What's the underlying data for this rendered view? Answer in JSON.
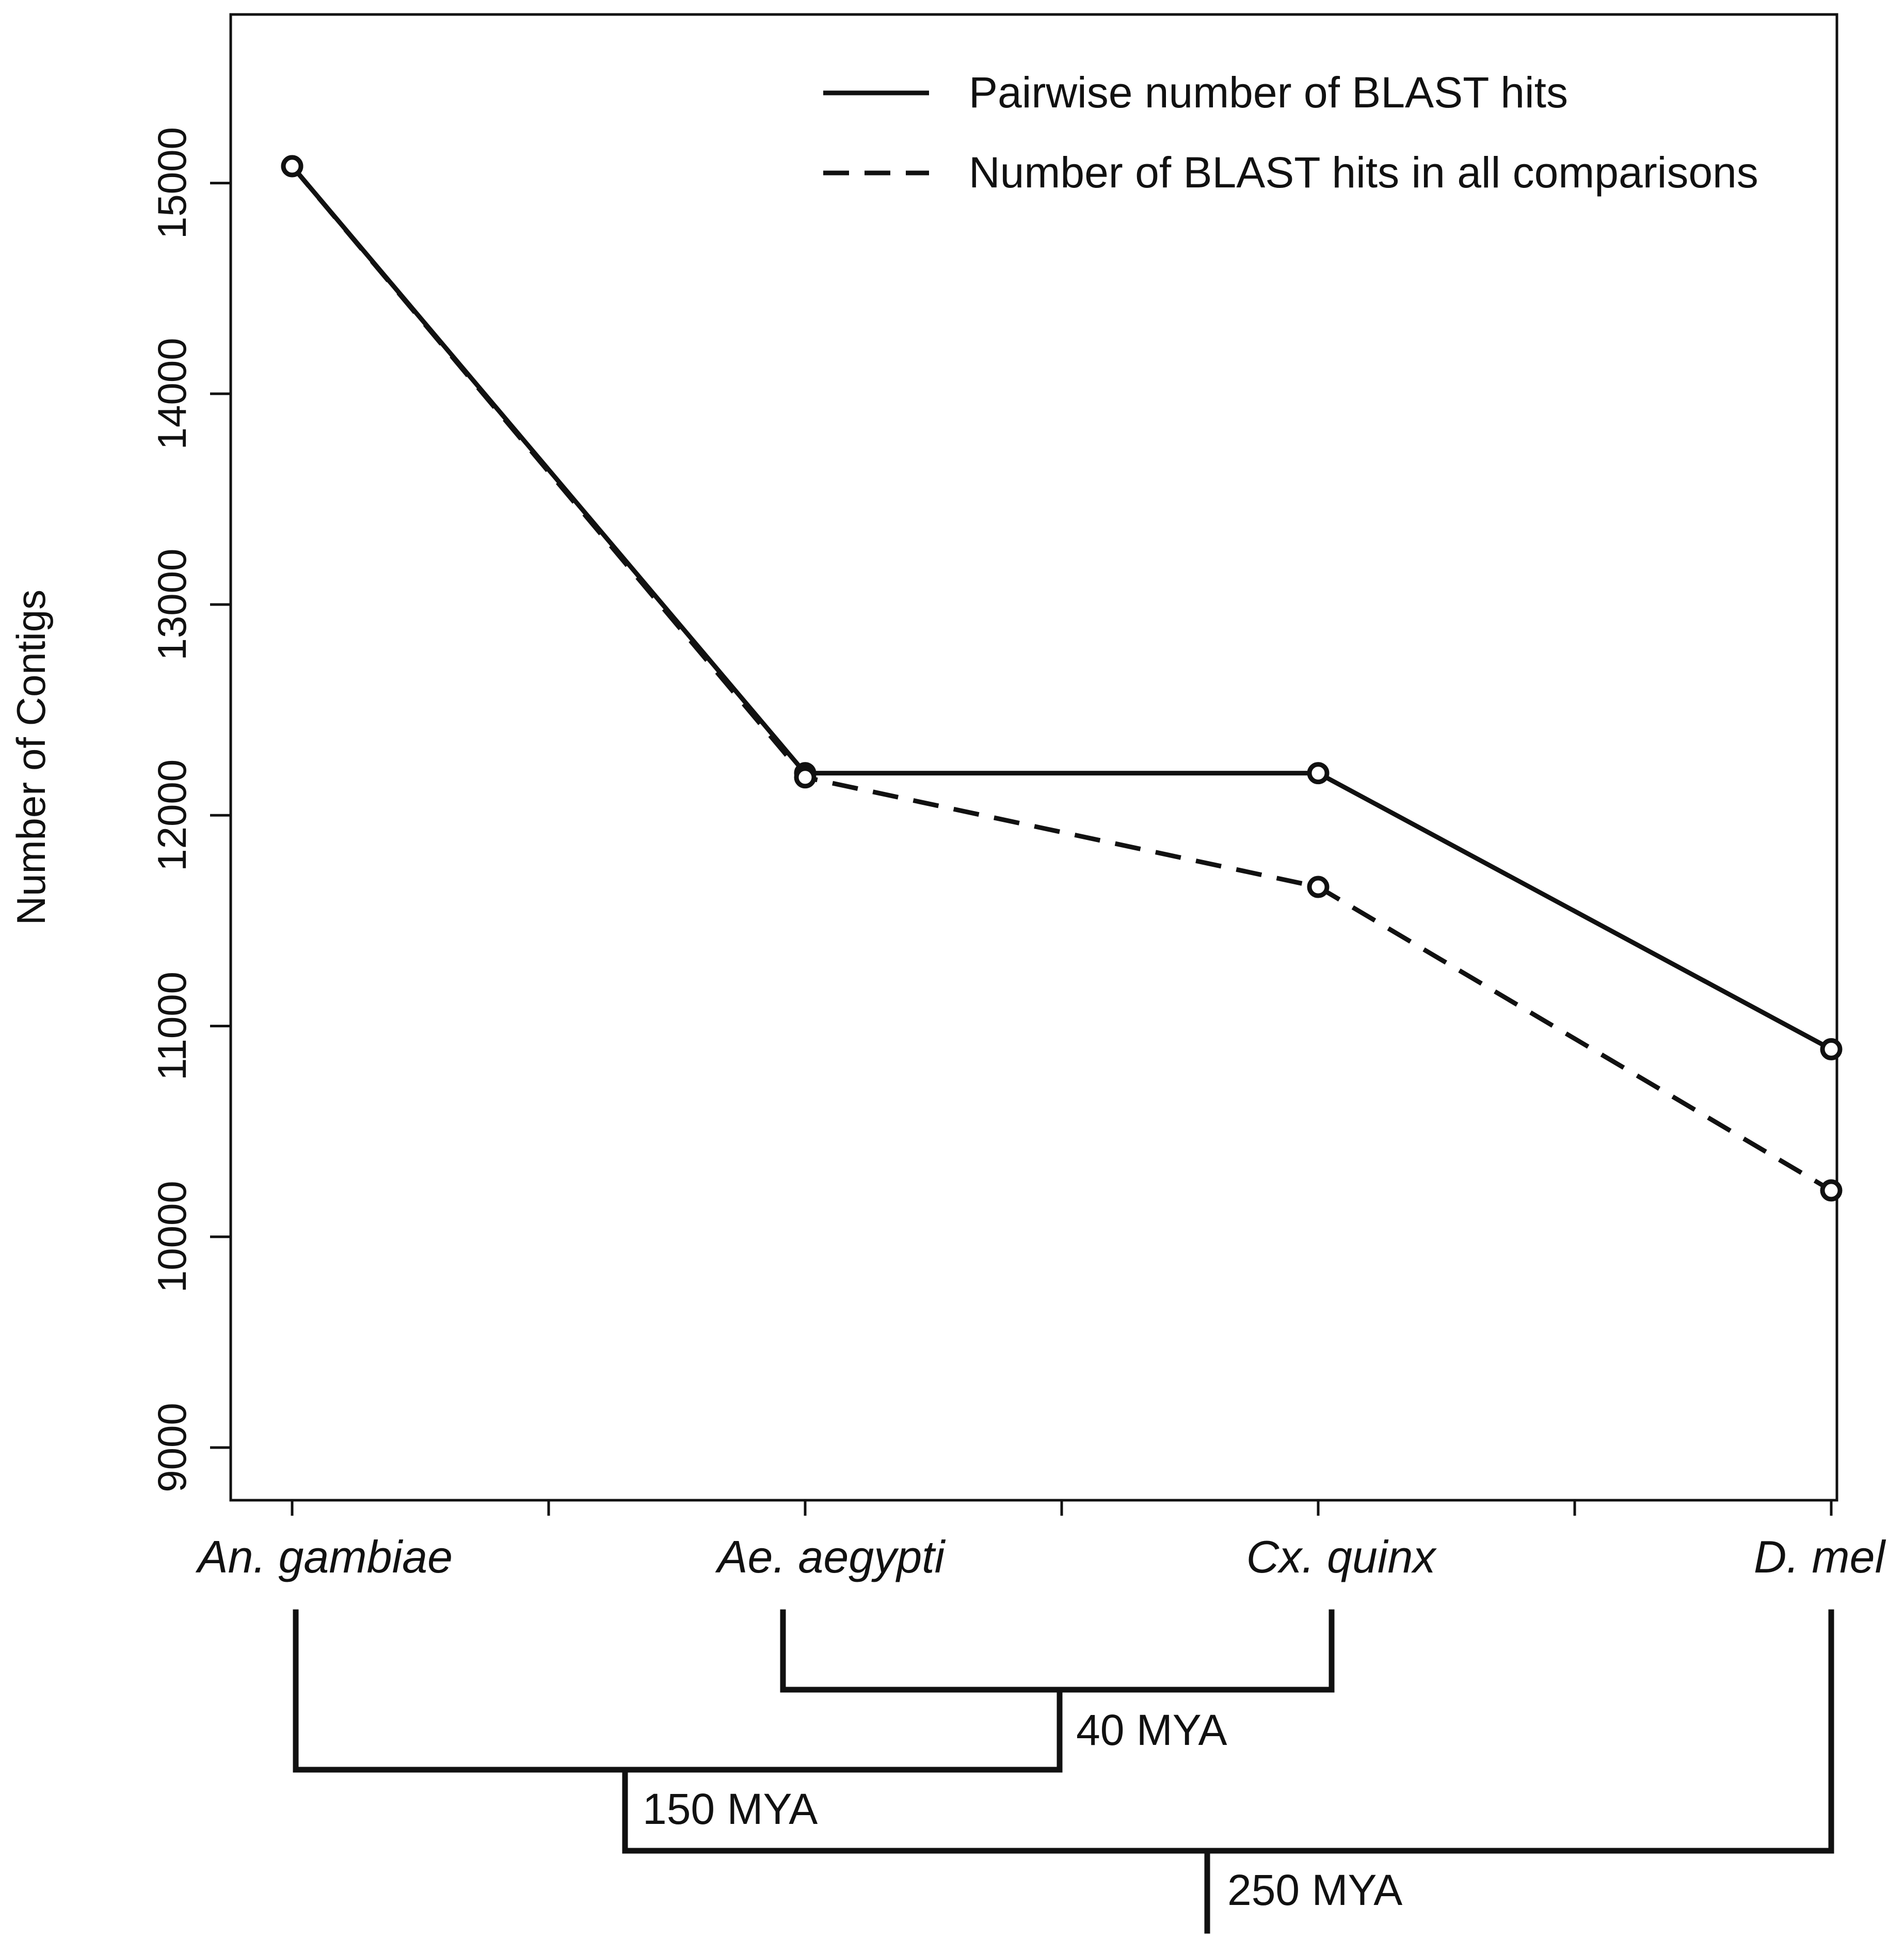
{
  "chart_data": {
    "type": "line",
    "title": "",
    "xlabel": "",
    "ylabel": "Number of Contigs",
    "ylim": [
      8750,
      15800
    ],
    "yticks": [
      9000,
      10000,
      11000,
      12000,
      13000,
      14000,
      15000
    ],
    "ytick_labels": [
      "9000",
      "10000",
      "11000",
      "12000",
      "13000",
      "14000",
      "15000"
    ],
    "categories": [
      "An. gambiae",
      "Ae. aegypti",
      "Cx. quinx",
      "D. mel"
    ],
    "series": [
      {
        "name": "Pairwise number of BLAST hits",
        "style": "solid",
        "values": [
          15080,
          12200,
          12200,
          10890
        ]
      },
      {
        "name": "Number of BLAST hits in all comparisons",
        "style": "dashed",
        "values": [
          15080,
          12180,
          11660,
          10220
        ]
      }
    ],
    "grid": false,
    "legend_position": "top-right",
    "colors": {
      "line": "#111111",
      "background": "#ffffff"
    }
  },
  "divergence_tree": {
    "nodes": [
      {
        "label": "40 MYA",
        "joins": [
          "Ae. aegypti",
          "Cx. quinx"
        ]
      },
      {
        "label": "150 MYA",
        "joins": [
          "An. gambiae",
          "40 MYA"
        ]
      },
      {
        "label": "250 MYA",
        "joins": [
          "150 MYA",
          "D. mel"
        ]
      }
    ]
  }
}
